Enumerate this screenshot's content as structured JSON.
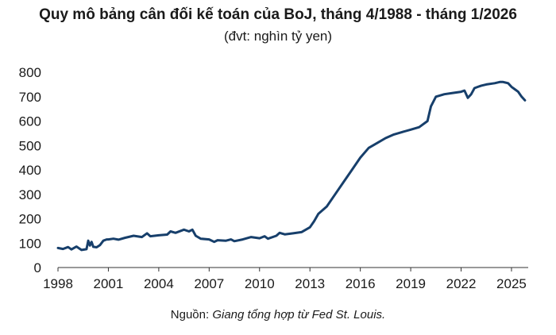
{
  "chart_data": {
    "type": "line",
    "title": "Quy mô bảng cân đối kế toán của BoJ, tháng 4/1988 - tháng 1/2026",
    "subtitle": "(đvt: nghìn tỷ yen)",
    "source_prefix": "Nguồn: ",
    "source_text": "Giang tổng hợp từ Fed St. Louis.",
    "xlim": [
      1998,
      2025.9
    ],
    "ylim": [
      0,
      800
    ],
    "x_ticks": [
      "1998",
      "2001",
      "2004",
      "2007",
      "2010",
      "2013",
      "2016",
      "2019",
      "2022",
      "2025"
    ],
    "y_ticks": [
      "0",
      "100",
      "200",
      "300",
      "400",
      "500",
      "600",
      "700",
      "800"
    ],
    "grid": false,
    "line_color": "#173f6b",
    "series": [
      {
        "x": [
          1998.0,
          1998.3,
          1998.6,
          1998.8,
          1999.1,
          1999.4,
          1999.7,
          1999.8,
          1999.9,
          2000.0,
          2000.1,
          2000.3,
          2000.5,
          2000.7,
          2000.9,
          2001.0,
          2001.3,
          2001.6,
          2002.0,
          2002.5,
          2003.0,
          2003.3,
          2003.5,
          2004.0,
          2004.5,
          2004.7,
          2005.0,
          2005.5,
          2005.8,
          2006.0,
          2006.2,
          2006.5,
          2007.0,
          2007.3,
          2007.5,
          2008.0,
          2008.3,
          2008.5,
          2009.0,
          2009.5,
          2010.0,
          2010.3,
          2010.5,
          2011.0,
          2011.2,
          2011.5,
          2012.0,
          2012.5,
          2013.0,
          2013.25,
          2013.5,
          2014.0,
          2014.5,
          2015.0,
          2015.5,
          2016.0,
          2016.5,
          2017.0,
          2017.5,
          2018.0,
          2018.5,
          2019.0,
          2019.5,
          2020.0,
          2020.2,
          2020.5,
          2021.0,
          2021.5,
          2022.0,
          2022.2,
          2022.4,
          2022.6,
          2022.8,
          2023.0,
          2023.2,
          2023.5,
          2024.0,
          2024.3,
          2024.5,
          2024.8,
          2025.0,
          2025.2,
          2025.4,
          2025.6,
          2025.8
        ],
        "values": [
          80,
          76,
          84,
          74,
          86,
          72,
          75,
          110,
          90,
          105,
          85,
          83,
          92,
          110,
          115,
          115,
          118,
          114,
          122,
          130,
          125,
          140,
          128,
          132,
          135,
          148,
          142,
          155,
          148,
          155,
          130,
          118,
          115,
          105,
          112,
          110,
          115,
          108,
          115,
          125,
          120,
          128,
          118,
          130,
          142,
          136,
          140,
          145,
          165,
          190,
          220,
          250,
          300,
          350,
          400,
          450,
          490,
          510,
          530,
          545,
          555,
          565,
          575,
          600,
          660,
          700,
          710,
          715,
          720,
          725,
          695,
          710,
          735,
          740,
          745,
          750,
          755,
          760,
          760,
          755,
          740,
          730,
          720,
          700,
          685
        ]
      }
    ]
  }
}
